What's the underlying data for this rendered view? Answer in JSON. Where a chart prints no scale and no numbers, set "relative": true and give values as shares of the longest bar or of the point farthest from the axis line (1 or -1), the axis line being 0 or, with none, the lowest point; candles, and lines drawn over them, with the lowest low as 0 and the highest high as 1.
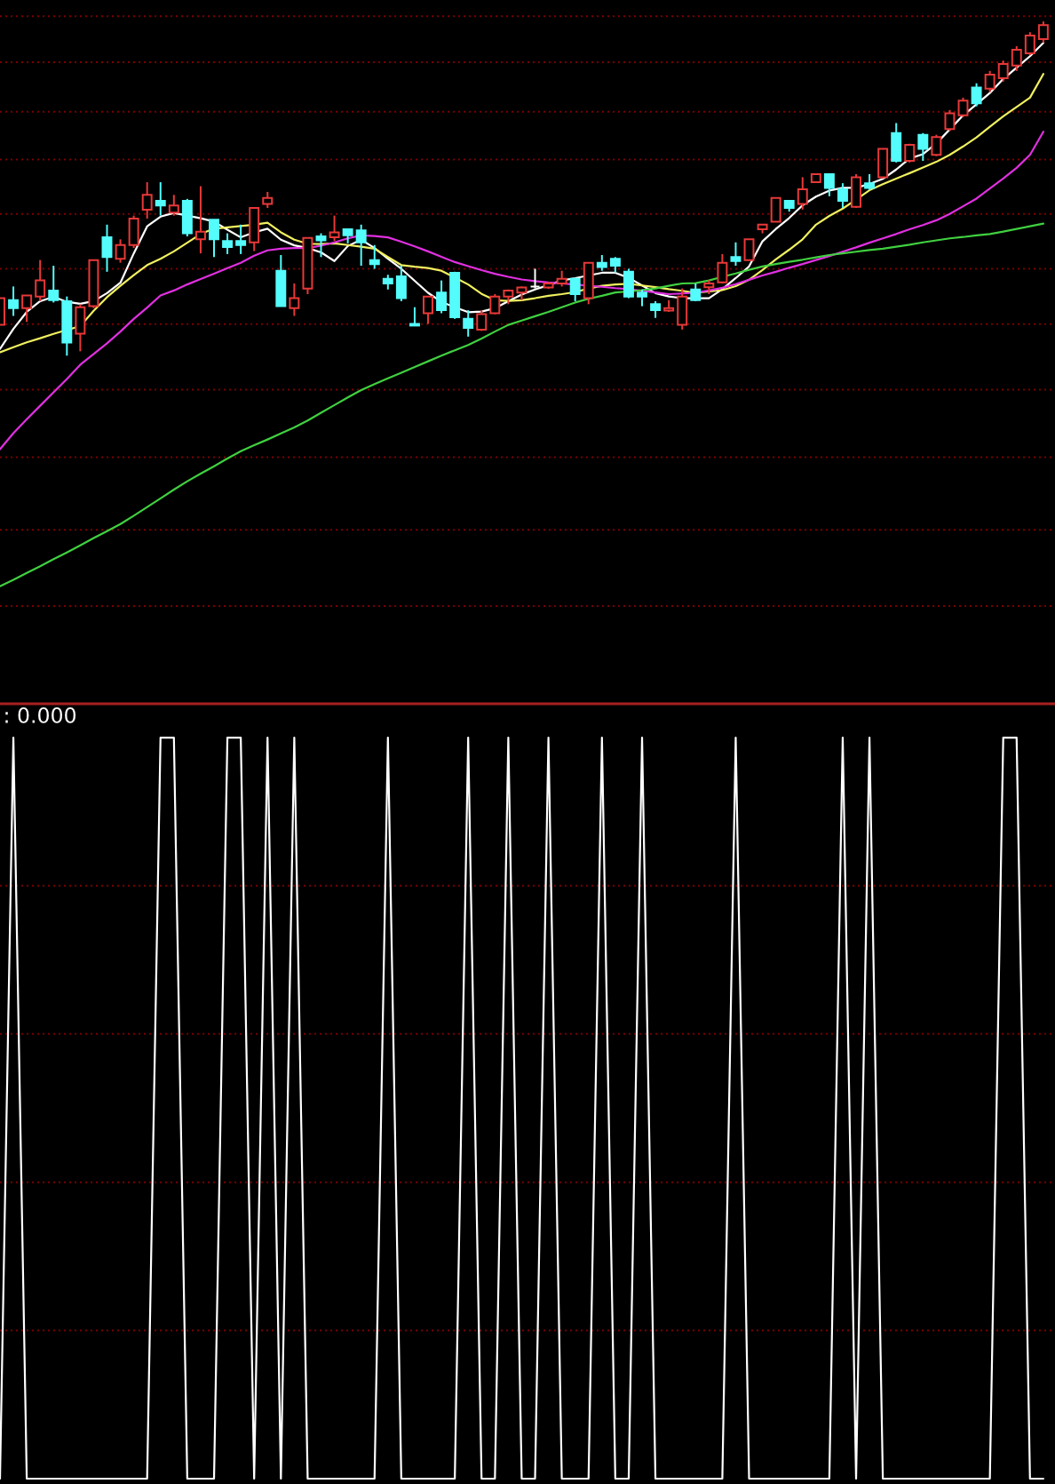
{
  "chart_data": [
    {
      "type": "candlestick",
      "relative": true,
      "ref_lines": [
        {
          "axis": "y",
          "value": 1.016,
          "color": "#7a0000",
          "line_style": "dotted"
        },
        {
          "axis": "y",
          "value": 0.878,
          "color": "#7a0000",
          "line_style": "dotted"
        },
        {
          "axis": "y",
          "value": 0.73,
          "color": "#7a0000",
          "line_style": "dotted"
        },
        {
          "axis": "y",
          "value": 0.587,
          "color": "#7a0000",
          "line_style": "dotted"
        },
        {
          "axis": "y",
          "value": 0.424,
          "color": "#7a0000",
          "line_style": "dotted"
        },
        {
          "axis": "y",
          "value": 0.26,
          "color": "#7a0000",
          "line_style": "dotted"
        },
        {
          "axis": "y",
          "value": 0.094,
          "color": "#7a0000",
          "line_style": "dotted"
        },
        {
          "axis": "y",
          "value": -0.102,
          "color": "#7a0000",
          "line_style": "dotted"
        },
        {
          "axis": "y",
          "value": -0.304,
          "color": "#7a0000",
          "line_style": "dotted"
        },
        {
          "axis": "y",
          "value": -0.521,
          "color": "#7a0000",
          "line_style": "dotted"
        },
        {
          "axis": "y",
          "value": -0.749,
          "color": "#7a0000",
          "line_style": "dotted"
        }
      ],
      "categories": [
        null,
        null,
        null,
        null,
        null,
        null,
        null,
        null,
        null,
        null,
        null,
        null,
        null,
        null,
        null,
        null,
        null,
        null,
        null,
        null,
        null,
        null,
        null,
        null,
        null,
        null,
        null,
        null,
        null,
        null,
        null,
        null,
        null,
        null,
        null,
        null,
        null,
        null,
        null,
        null,
        null,
        null,
        null,
        null,
        null,
        null,
        null,
        null,
        null,
        null,
        null,
        null,
        null,
        null,
        null,
        null,
        null,
        null,
        null,
        null,
        null,
        null,
        null,
        null,
        null,
        null,
        null,
        null,
        null,
        null,
        null,
        null,
        null,
        null,
        null,
        null,
        null,
        null,
        null
      ],
      "ohlc": [
        [
          0.092,
          0.172,
          0.092,
          0.172
        ],
        [
          0.166,
          0.207,
          0.119,
          0.142
        ],
        [
          0.142,
          0.18,
          0.101,
          0.18
        ],
        [
          0.177,
          0.286,
          0.163,
          0.225
        ],
        [
          0.195,
          0.269,
          0.159,
          0.166
        ],
        [
          0.163,
          0.177,
          0.0,
          0.039
        ],
        [
          0.066,
          0.154,
          0.013,
          0.145
        ],
        [
          0.148,
          0.286,
          0.142,
          0.286
        ],
        [
          0.354,
          0.392,
          0.251,
          0.295
        ],
        [
          0.29,
          0.348,
          0.278,
          0.331
        ],
        [
          0.331,
          0.419,
          0.322,
          0.41
        ],
        [
          0.437,
          0.519,
          0.41,
          0.481
        ],
        [
          0.463,
          0.519,
          0.419,
          0.449
        ],
        [
          0.428,
          0.481,
          0.419,
          0.449
        ],
        [
          0.463,
          0.469,
          0.357,
          0.366
        ],
        [
          0.348,
          0.507,
          0.306,
          0.371
        ],
        [
          0.407,
          0.407,
          0.295,
          0.348
        ],
        [
          0.343,
          0.366,
          0.304,
          0.325
        ],
        [
          0.343,
          0.392,
          0.304,
          0.331
        ],
        [
          0.339,
          0.442,
          0.313,
          0.442
        ],
        [
          0.454,
          0.49,
          0.442,
          0.472
        ],
        [
          0.254,
          0.301,
          0.148,
          0.148
        ],
        [
          0.142,
          0.216,
          0.119,
          0.172
        ],
        [
          0.201,
          0.352,
          0.184,
          0.352
        ],
        [
          0.357,
          0.366,
          0.295,
          0.345
        ],
        [
          0.354,
          0.419,
          0.343,
          0.369
        ],
        [
          0.378,
          0.378,
          0.336,
          0.36
        ],
        [
          0.375,
          0.392,
          0.269,
          0.339
        ],
        [
          0.286,
          0.331,
          0.26,
          0.274
        ],
        [
          0.23,
          0.242,
          0.198,
          0.216
        ],
        [
          0.237,
          0.269,
          0.163,
          0.172
        ],
        [
          0.095,
          0.145,
          0.089,
          0.09
        ],
        [
          0.127,
          0.177,
          0.095,
          0.177
        ],
        [
          0.189,
          0.225,
          0.127,
          0.136
        ],
        [
          0.248,
          0.251,
          0.11,
          0.115
        ],
        [
          0.11,
          0.136,
          0.057,
          0.083
        ],
        [
          0.078,
          0.136,
          0.074,
          0.124
        ],
        [
          0.127,
          0.184,
          0.124,
          0.177
        ],
        [
          0.177,
          0.198,
          0.154,
          0.195
        ],
        [
          0.189,
          0.207,
          0.166,
          0.204
        ],
        [
          0.207,
          0.26,
          0.201,
          0.207
        ],
        [
          0.204,
          0.221,
          0.2,
          0.216
        ],
        [
          0.216,
          0.254,
          0.207,
          0.23
        ],
        [
          0.23,
          0.233,
          0.163,
          0.184
        ],
        [
          0.172,
          0.278,
          0.154,
          0.278
        ],
        [
          0.278,
          0.301,
          0.254,
          0.265
        ],
        [
          0.29,
          0.295,
          0.248,
          0.269
        ],
        [
          0.251,
          0.26,
          0.172,
          0.177
        ],
        [
          0.189,
          0.198,
          0.148,
          0.177
        ],
        [
          0.154,
          0.163,
          0.113,
          0.136
        ],
        [
          0.135,
          0.166,
          0.131,
          0.142
        ],
        [
          0.092,
          0.201,
          0.078,
          0.177
        ],
        [
          0.198,
          0.216,
          0.163,
          0.166
        ],
        [
          0.205,
          0.226,
          0.184,
          0.216
        ],
        [
          0.219,
          0.304,
          0.216,
          0.278
        ],
        [
          0.295,
          0.339,
          0.269,
          0.283
        ],
        [
          0.286,
          0.348,
          0.286,
          0.348
        ],
        [
          0.378,
          0.392,
          0.366,
          0.392
        ],
        [
          0.401,
          0.472,
          0.401,
          0.472
        ],
        [
          0.463,
          0.466,
          0.431,
          0.442
        ],
        [
          0.454,
          0.534,
          0.437,
          0.498
        ],
        [
          0.519,
          0.543,
          0.519,
          0.543
        ],
        [
          0.543,
          0.543,
          0.477,
          0.502
        ],
        [
          0.498,
          0.516,
          0.442,
          0.463
        ],
        [
          0.445,
          0.543,
          0.442,
          0.534
        ],
        [
          0.516,
          0.543,
          0.495,
          0.502
        ],
        [
          0.534,
          0.619,
          0.53,
          0.619
        ],
        [
          0.666,
          0.696,
          0.578,
          0.583
        ],
        [
          0.583,
          0.634,
          0.578,
          0.631
        ],
        [
          0.661,
          0.666,
          0.583,
          0.619
        ],
        [
          0.601,
          0.661,
          0.597,
          0.654
        ],
        [
          0.678,
          0.735,
          0.672,
          0.725
        ],
        [
          0.719,
          0.772,
          0.714,
          0.763
        ],
        [
          0.802,
          0.815,
          0.746,
          0.755
        ],
        [
          0.799,
          0.852,
          0.788,
          0.841
        ],
        [
          0.83,
          0.883,
          0.82,
          0.873
        ],
        [
          0.868,
          0.926,
          0.852,
          0.915
        ],
        [
          0.905,
          0.968,
          0.899,
          0.958
        ],
        [
          0.947,
          1.0,
          0.936,
          0.989
        ]
      ],
      "colors": [
        "#e83838",
        "#54fcfc",
        "#e83838",
        "#e83838",
        "#54fcfc",
        "#54fcfc",
        "#e83838",
        "#e83838",
        "#54fcfc",
        "#e83838",
        "#e83838",
        "#e83838",
        "#54fcfc",
        "#e83838",
        "#54fcfc",
        "#e83838",
        "#54fcfc",
        "#54fcfc",
        "#54fcfc",
        "#e83838",
        "#e83838",
        "#54fcfc",
        "#e83838",
        "#e83838",
        "#54fcfc",
        "#e83838",
        "#54fcfc",
        "#54fcfc",
        "#54fcfc",
        "#54fcfc",
        "#54fcfc",
        "#54fcfc",
        "#e83838",
        "#54fcfc",
        "#54fcfc",
        "#54fcfc",
        "#e83838",
        "#e83838",
        "#e83838",
        "#e83838",
        "#ffffff",
        "#e83838",
        "#e83838",
        "#54fcfc",
        "#e83838",
        "#54fcfc",
        "#54fcfc",
        "#54fcfc",
        "#54fcfc",
        "#54fcfc",
        "#e83838",
        "#e83838",
        "#54fcfc",
        "#e83838",
        "#e83838",
        "#54fcfc",
        "#e83838",
        "#e83838",
        "#e83838",
        "#54fcfc",
        "#e83838",
        "#e83838",
        "#54fcfc",
        "#54fcfc",
        "#e83838",
        "#54fcfc",
        "#e83838",
        "#54fcfc",
        "#e83838",
        "#54fcfc",
        "#e83838",
        "#e83838",
        "#e83838",
        "#54fcfc",
        "#e83838",
        "#e83838",
        "#e83838",
        "#e83838",
        "#e83838"
      ],
      "series": [
        {
          "type": "line",
          "color": "#ffffff",
          "values": [
            0.02,
            0.08,
            0.131,
            0.163,
            0.176,
            0.161,
            0.155,
            0.163,
            0.187,
            0.218,
            0.306,
            0.387,
            0.416,
            0.427,
            0.419,
            0.411,
            0.401,
            0.377,
            0.354,
            0.369,
            0.38,
            0.347,
            0.33,
            0.322,
            0.309,
            0.283,
            0.328,
            0.347,
            0.322,
            0.29,
            0.26,
            0.224,
            0.188,
            0.161,
            0.145,
            0.13,
            0.132,
            0.142,
            0.163,
            0.183,
            0.198,
            0.211,
            0.225,
            0.232,
            0.24,
            0.248,
            0.248,
            0.233,
            0.21,
            0.187,
            0.177,
            0.172,
            0.172,
            0.172,
            0.199,
            0.232,
            0.267,
            0.342,
            0.379,
            0.412,
            0.45,
            0.476,
            0.494,
            0.502,
            0.502,
            0.514,
            0.529,
            0.557,
            0.59,
            0.603,
            0.635,
            0.677,
            0.719,
            0.752,
            0.786,
            0.828,
            0.862,
            0.896,
            0.936
          ]
        },
        {
          "type": "line",
          "color": "#f0f060",
          "values": [
            0.01,
            0.025,
            0.04,
            0.052,
            0.065,
            0.077,
            0.088,
            0.134,
            0.175,
            0.209,
            0.241,
            0.271,
            0.29,
            0.312,
            0.338,
            0.364,
            0.38,
            0.384,
            0.388,
            0.392,
            0.398,
            0.369,
            0.347,
            0.335,
            0.334,
            0.336,
            0.331,
            0.326,
            0.32,
            0.295,
            0.271,
            0.266,
            0.262,
            0.254,
            0.234,
            0.213,
            0.185,
            0.166,
            0.164,
            0.166,
            0.172,
            0.179,
            0.184,
            0.19,
            0.201,
            0.209,
            0.213,
            0.215,
            0.21,
            0.205,
            0.199,
            0.194,
            0.188,
            0.192,
            0.196,
            0.208,
            0.227,
            0.256,
            0.288,
            0.317,
            0.348,
            0.392,
            0.418,
            0.44,
            0.467,
            0.495,
            0.513,
            0.53,
            0.546,
            0.563,
            0.58,
            0.601,
            0.626,
            0.653,
            0.685,
            0.716,
            0.744,
            0.772,
            0.843
          ]
        },
        {
          "type": "line",
          "color": "#e030e0",
          "values": [
            -0.28,
            -0.232,
            -0.19,
            -0.15,
            -0.11,
            -0.07,
            -0.027,
            0.005,
            0.037,
            0.072,
            0.11,
            0.144,
            0.18,
            0.195,
            0.213,
            0.229,
            0.245,
            0.262,
            0.278,
            0.299,
            0.315,
            0.32,
            0.322,
            0.322,
            0.329,
            0.339,
            0.351,
            0.36,
            0.358,
            0.354,
            0.341,
            0.327,
            0.312,
            0.296,
            0.28,
            0.268,
            0.256,
            0.245,
            0.236,
            0.228,
            0.223,
            0.219,
            0.216,
            0.213,
            0.209,
            0.206,
            0.202,
            0.199,
            0.194,
            0.189,
            0.184,
            0.186,
            0.188,
            0.195,
            0.203,
            0.214,
            0.227,
            0.24,
            0.251,
            0.263,
            0.274,
            0.286,
            0.298,
            0.311,
            0.324,
            0.338,
            0.351,
            0.364,
            0.378,
            0.391,
            0.405,
            0.424,
            0.447,
            0.47,
            0.5,
            0.53,
            0.562,
            0.601,
            0.67
          ]
        },
        {
          "type": "line",
          "color": "#40d040",
          "values": [
            -0.69,
            -0.671,
            -0.65,
            -0.63,
            -0.609,
            -0.589,
            -0.568,
            -0.546,
            -0.525,
            -0.504,
            -0.479,
            -0.453,
            -0.427,
            -0.401,
            -0.376,
            -0.353,
            -0.331,
            -0.308,
            -0.286,
            -0.268,
            -0.251,
            -0.233,
            -0.215,
            -0.194,
            -0.171,
            -0.148,
            -0.125,
            -0.103,
            -0.085,
            -0.068,
            -0.051,
            -0.034,
            -0.017,
            0.0,
            0.016,
            0.032,
            0.051,
            0.072,
            0.092,
            0.105,
            0.118,
            0.131,
            0.145,
            0.159,
            0.17,
            0.179,
            0.189,
            0.192,
            0.196,
            0.201,
            0.209,
            0.216,
            0.217,
            0.225,
            0.236,
            0.246,
            0.257,
            0.267,
            0.274,
            0.281,
            0.287,
            0.294,
            0.301,
            0.306,
            0.311,
            0.316,
            0.32,
            0.326,
            0.332,
            0.339,
            0.345,
            0.351,
            0.355,
            0.36,
            0.364,
            0.371,
            0.379,
            0.387,
            0.395
          ]
        }
      ]
    },
    {
      "type": "line",
      "relative": true,
      "legend": "top left",
      "ref_lines": [
        {
          "axis": "y",
          "value": 0.2,
          "color": "#7a0000",
          "line_style": "dotted"
        },
        {
          "axis": "y",
          "value": 0.4,
          "color": "#7a0000",
          "line_style": "dotted"
        },
        {
          "axis": "y",
          "value": 0.6,
          "color": "#7a0000",
          "line_style": "dotted"
        },
        {
          "axis": "y",
          "value": 0.8,
          "color": "#7a0000",
          "line_style": "dotted"
        }
      ],
      "categories": [
        null,
        null,
        null,
        null,
        null,
        null,
        null,
        null,
        null,
        null,
        null,
        null,
        null,
        null,
        null,
        null,
        null,
        null,
        null,
        null,
        null,
        null,
        null,
        null,
        null,
        null,
        null,
        null,
        null,
        null,
        null,
        null,
        null,
        null,
        null,
        null,
        null,
        null,
        null,
        null,
        null,
        null,
        null,
        null,
        null,
        null,
        null,
        null,
        null,
        null,
        null,
        null,
        null,
        null,
        null,
        null,
        null,
        null,
        null,
        null,
        null,
        null,
        null,
        null,
        null,
        null,
        null,
        null,
        null,
        null,
        null,
        null,
        null,
        null,
        null,
        null,
        null,
        null,
        null
      ],
      "series": [
        {
          "name": ": 0.000",
          "color": "#ffffff",
          "values": [
            0,
            1,
            0,
            0,
            0,
            0,
            0,
            0,
            0,
            0,
            0,
            0,
            1,
            1,
            0,
            0,
            0,
            1,
            1,
            0,
            1,
            0,
            1,
            0,
            0,
            0,
            0,
            0,
            0,
            1,
            0,
            0,
            0,
            0,
            0,
            1,
            0,
            0,
            1,
            0,
            0,
            1,
            0,
            0,
            0,
            1,
            0,
            0,
            1,
            0,
            0,
            0,
            0,
            0,
            0,
            1,
            0,
            0,
            0,
            0,
            0,
            0,
            0,
            1,
            0,
            1,
            0,
            0,
            0,
            0,
            0,
            0,
            0,
            0,
            0,
            1,
            1,
            0,
            0
          ]
        }
      ]
    }
  ]
}
